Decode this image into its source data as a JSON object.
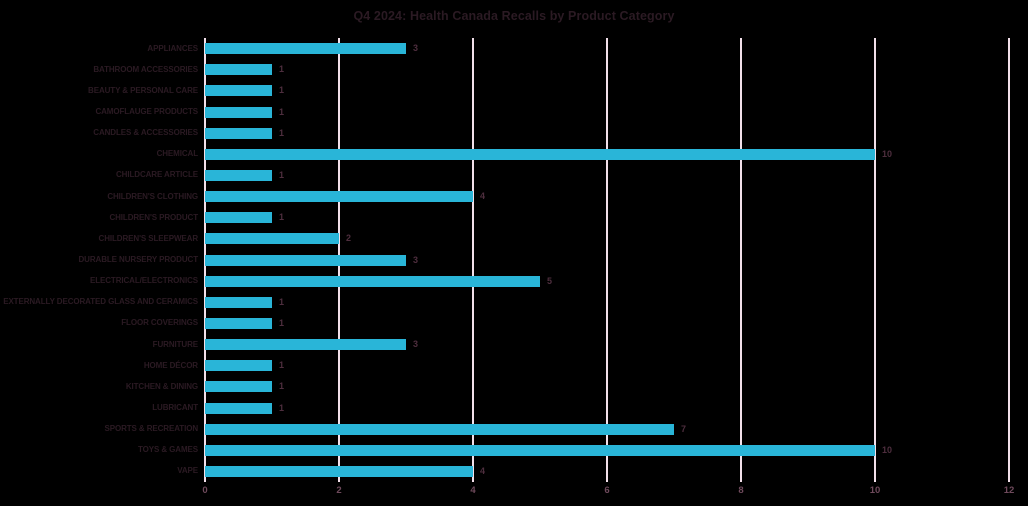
{
  "title": "Q4 2024: Health Canada Recalls by Product Category",
  "colors": {
    "background": "#000000",
    "bar": "#29b5d8",
    "gridline": "#f2e0ea",
    "title_text": "#2b1a23",
    "category_text": "#2b1a23",
    "data_label_text": "#4e2e3e",
    "axis_tick_text": "#6f4a5c"
  },
  "chart_data": {
    "type": "bar",
    "orientation": "horizontal",
    "title": "Q4 2024: Health Canada Recalls by Product Category",
    "categories": [
      "APPLIANCES",
      "BATHROOM ACCESSORIES",
      "BEAUTY & PERSONAL CARE",
      "CAMOFLAUGE PRODUCTS",
      "CANDLES & ACCESSORIES",
      "CHEMICAL",
      "CHILDCARE ARTICLE",
      "CHILDREN'S CLOTHING",
      "CHILDREN'S PRODUCT",
      "CHILDREN'S SLEEPWEAR",
      "DURABLE NURSERY PRODUCT",
      "ELECTRICAL/ELECTRONICS",
      "EXTERNALLY DECORATED GLASS AND CERAMICS",
      "FLOOR COVERINGS",
      "FURNITURE",
      "HOME DÉCOR",
      "KITCHEN & DINING",
      "LUBRICANT",
      "SPORTS & RECREATION",
      "TOYS & GAMES",
      "VAPE"
    ],
    "values": [
      3,
      1,
      1,
      1,
      1,
      10,
      1,
      4,
      1,
      2,
      3,
      5,
      1,
      1,
      3,
      1,
      1,
      1,
      7,
      10,
      4
    ],
    "data_labels_shown": true,
    "xlabel": "",
    "ylabel": "",
    "xlim": [
      0,
      12
    ],
    "x_ticks": [
      0,
      2,
      4,
      6,
      8,
      10,
      12
    ],
    "grid": "vertical",
    "legend": "none"
  }
}
